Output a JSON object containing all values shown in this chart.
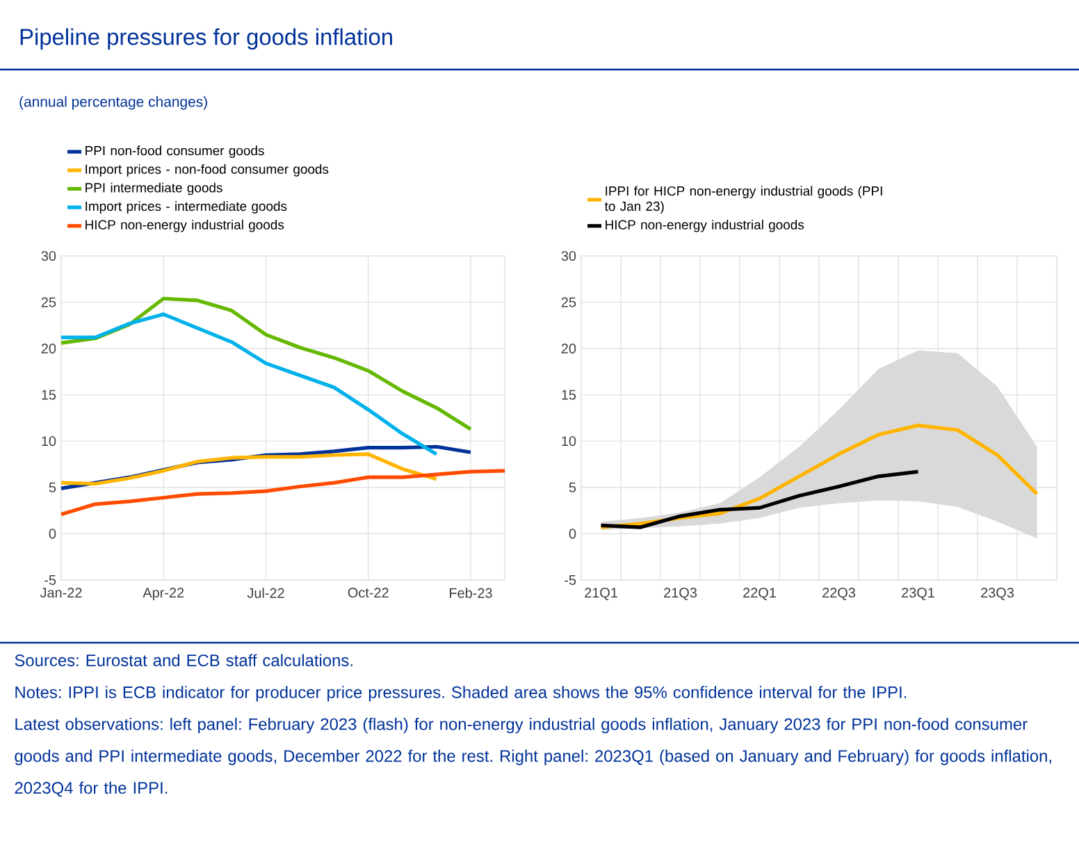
{
  "chart_data": [
    {
      "type": "line",
      "title": "Pipeline pressures for goods inflation",
      "subtitle": "(annual percentage changes)",
      "categories": [
        "Jan-22",
        null,
        null,
        "Apr-22",
        null,
        null,
        "Jul-22",
        null,
        null,
        "Oct-22",
        null,
        null,
        "Feb-23",
        null
      ],
      "ylim": [
        -5,
        30
      ],
      "yticks": [
        -5,
        0,
        5,
        10,
        15,
        20,
        25,
        30
      ],
      "grid": true,
      "legend": "top",
      "series": [
        {
          "name": "PPI non-food consumer goods",
          "color": "#003299",
          "values": [
            4.9,
            5.5,
            6.1,
            6.9,
            7.7,
            8.0,
            8.5,
            8.6,
            8.9,
            9.3,
            9.3,
            9.4,
            8.8,
            null
          ]
        },
        {
          "name": "Import prices - non-food consumer goods",
          "color": "#ffb400",
          "values": [
            5.5,
            5.4,
            6.0,
            6.8,
            7.8,
            8.2,
            8.3,
            8.3,
            8.5,
            8.6,
            7.0,
            5.9,
            null,
            null
          ]
        },
        {
          "name": "PPI intermediate goods",
          "color": "#65b800",
          "values": [
            20.6,
            21.1,
            22.6,
            25.4,
            25.2,
            24.1,
            21.5,
            20.1,
            19.0,
            17.6,
            15.4,
            13.6,
            11.3,
            null
          ]
        },
        {
          "name": "Import prices - intermediate goods",
          "color": "#00b1ea",
          "values": [
            21.2,
            21.2,
            22.7,
            23.7,
            22.2,
            20.7,
            18.4,
            17.1,
            15.8,
            13.4,
            10.8,
            8.6,
            null,
            null
          ]
        },
        {
          "name": "HICP non-energy industrial goods",
          "color": "#ff4b00",
          "values": [
            2.1,
            3.2,
            3.5,
            3.9,
            4.3,
            4.4,
            4.6,
            5.1,
            5.5,
            6.1,
            6.1,
            6.4,
            6.7,
            6.8
          ]
        }
      ]
    },
    {
      "type": "line",
      "categories": [
        "21Q1",
        null,
        "21Q3",
        null,
        "22Q1",
        null,
        "22Q3",
        null,
        "23Q1",
        null,
        "23Q3",
        null
      ],
      "ylim": [
        -5,
        30
      ],
      "yticks": [
        -5,
        0,
        5,
        10,
        15,
        20,
        25,
        30
      ],
      "grid": true,
      "legend": "top",
      "series": [
        {
          "name": "IPPI for HICP non-energy industrial goods (PPI to Jan 23)",
          "color": "#ffb400",
          "values": [
            0.7,
            1.1,
            1.7,
            2.2,
            3.8,
            6.2,
            8.6,
            10.7,
            11.7,
            11.2,
            8.5,
            4.3
          ],
          "lower": [
            0.4,
            0.6,
            0.8,
            1.1,
            1.7,
            2.8,
            3.3,
            3.6,
            3.5,
            2.9,
            1.3,
            -0.5
          ],
          "upper": [
            1.3,
            1.7,
            2.3,
            3.3,
            6.1,
            9.4,
            13.4,
            17.8,
            19.8,
            19.5,
            15.9,
            9.4
          ]
        },
        {
          "name": "HICP non-energy industrial goods",
          "color": "#000000",
          "values": [
            0.9,
            0.7,
            1.9,
            2.6,
            2.8,
            4.1,
            5.1,
            6.2,
            6.7,
            null,
            null,
            null
          ]
        }
      ],
      "annotations": [
        "Sources: Eurostat and ECB staff calculations.",
        "Notes: IPPI is ECB indicator for producer price pressures. Shaded area shows the 95% confidence interval for the IPPI.",
        "Latest observations: left panel: February 2023 (flash) for non-energy industrial goods inflation, January 2023 for PPI non-food consumer goods and PPI intermediate goods, December 2022 for the rest. Right panel: 2023Q1 (based on January and February) for goods inflation, 2023Q4 for the IPPI."
      ]
    }
  ]
}
